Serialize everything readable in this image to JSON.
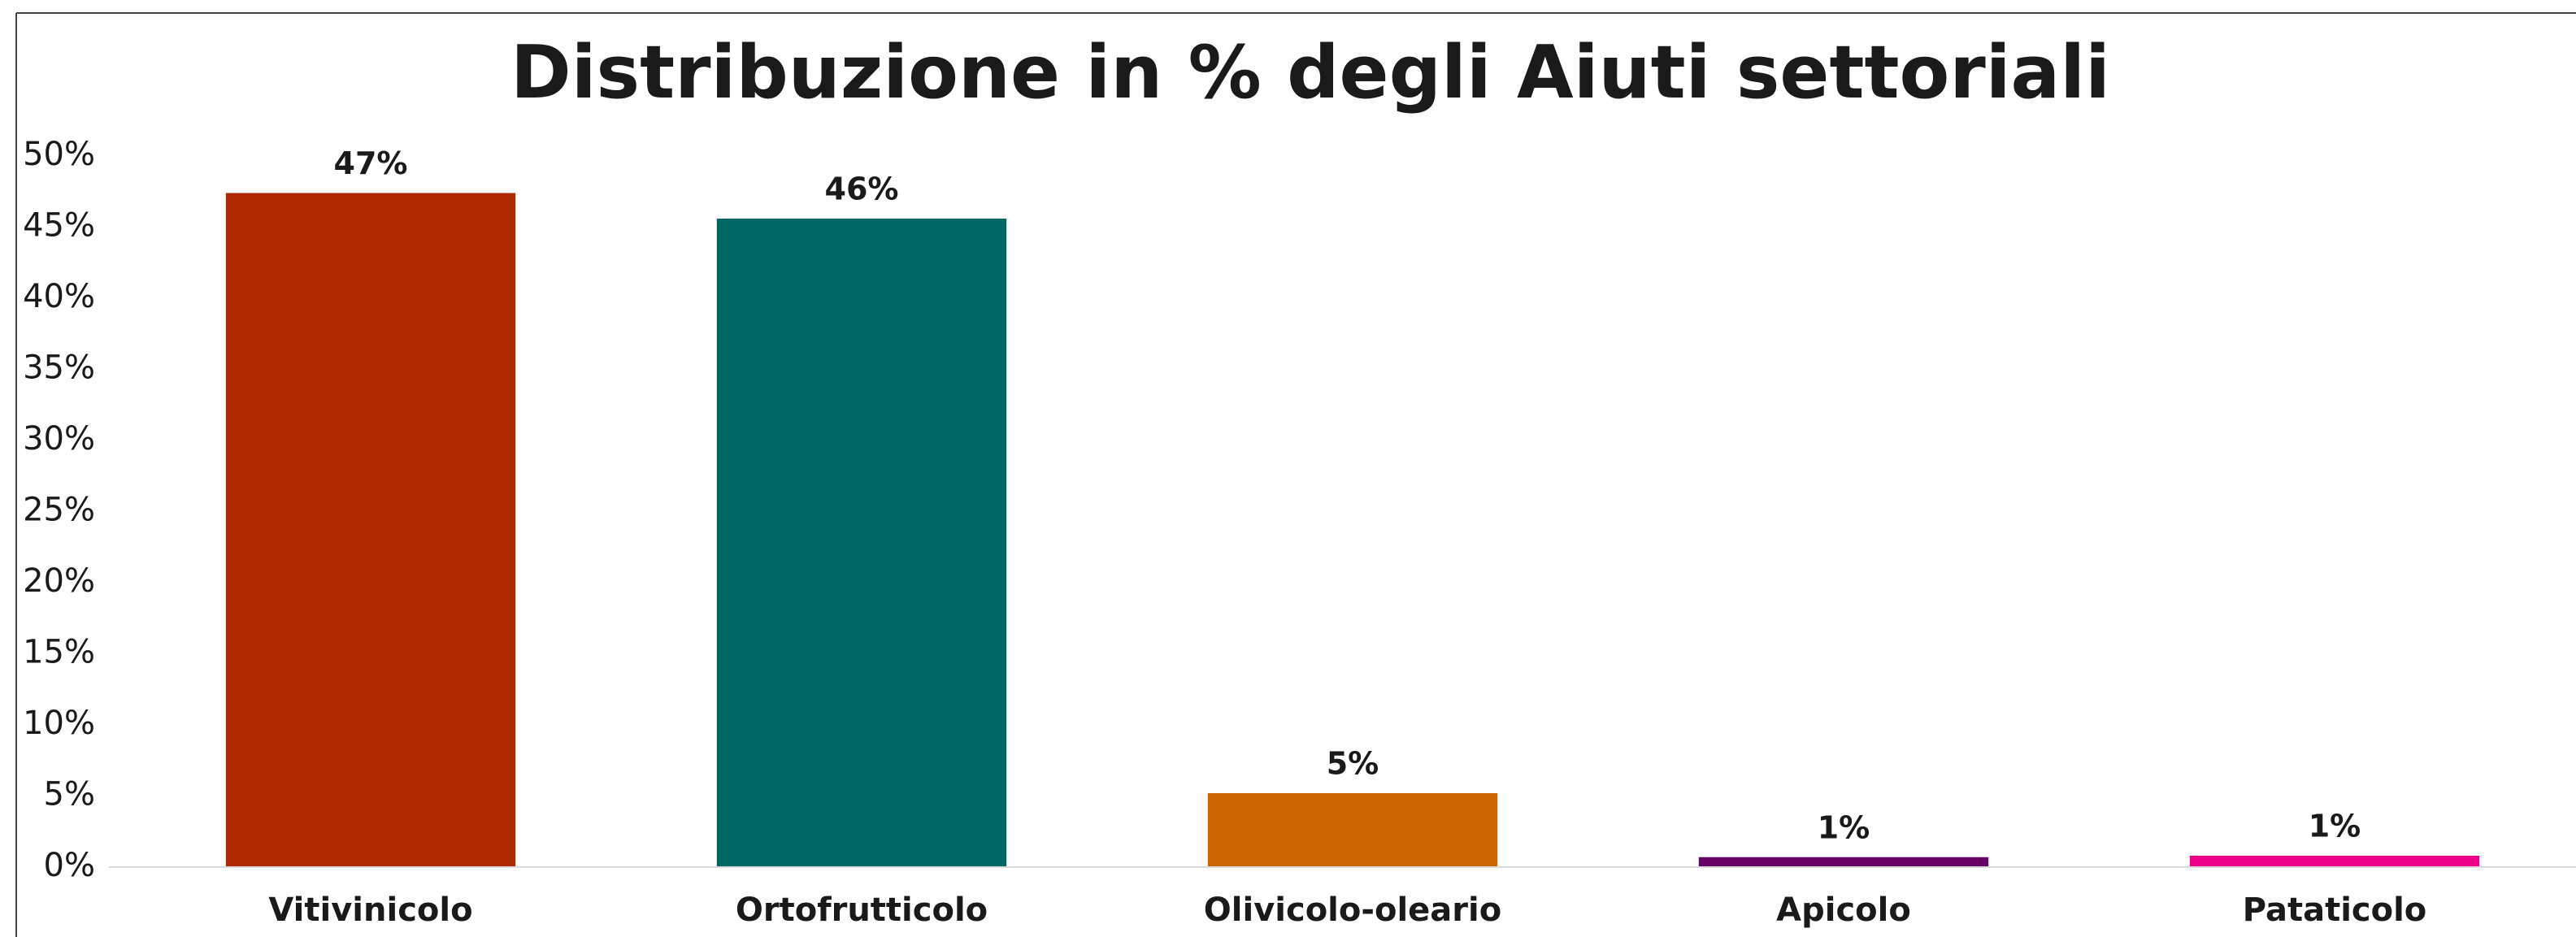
{
  "chart_data": {
    "type": "bar",
    "title": "Distribuzione in % degli Aiuti settoriali",
    "categories": [
      "Vitivinicolo",
      "Ortofrutticolo",
      "Olivicolo-oleario",
      "Apicolo",
      "Pataticolo"
    ],
    "values": [
      47.4,
      45.6,
      5.2,
      0.7,
      0.8
    ],
    "value_labels": [
      "47%",
      "46%",
      "5%",
      "1%",
      "1%"
    ],
    "colors": [
      "#ae2a00",
      "#006663",
      "#cc6600",
      "#660066",
      "#ee0088"
    ],
    "ylim": [
      0,
      50
    ],
    "yticks": [
      {
        "value": 0,
        "label": "0%"
      },
      {
        "value": 5,
        "label": "5%"
      },
      {
        "value": 10,
        "label": "10%"
      },
      {
        "value": 15,
        "label": "15%"
      },
      {
        "value": 20,
        "label": "20%"
      },
      {
        "value": 25,
        "label": "25%"
      },
      {
        "value": 30,
        "label": "30%"
      },
      {
        "value": 35,
        "label": "35%"
      },
      {
        "value": 40,
        "label": "40%"
      },
      {
        "value": 45,
        "label": "45%"
      },
      {
        "value": 50,
        "label": "50%"
      }
    ],
    "grid": false
  }
}
